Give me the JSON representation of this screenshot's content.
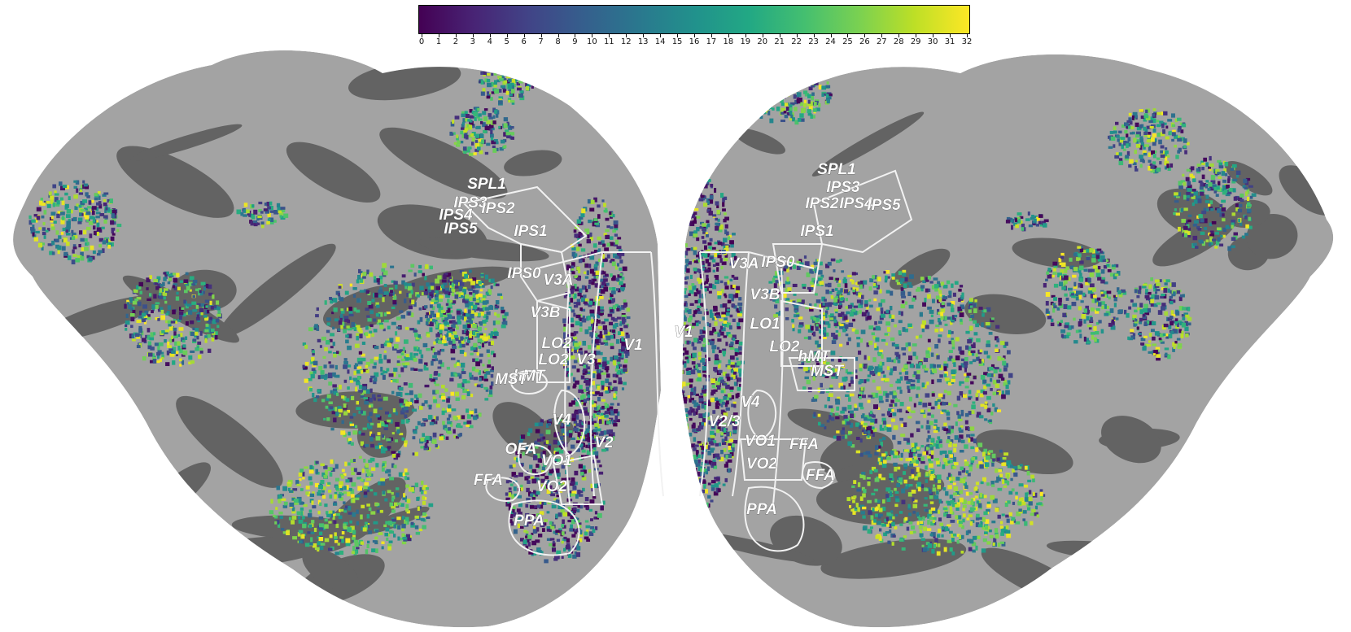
{
  "colorbar": {
    "min": 0,
    "max": 32,
    "colormap": "viridis",
    "ticks": [
      "0",
      "1",
      "2",
      "3",
      "4",
      "5",
      "6",
      "7",
      "8",
      "9",
      "10",
      "11",
      "12",
      "13",
      "14",
      "15",
      "16",
      "17",
      "18",
      "19",
      "20",
      "21",
      "22",
      "23",
      "24",
      "25",
      "26",
      "27",
      "28",
      "29",
      "30",
      "31",
      "32"
    ]
  },
  "colors": {
    "background": "#ffffff",
    "gyri": "#a3a3a3",
    "sulci": "#636363",
    "roi_outline": "#f2f2f2",
    "roi_text": "#ffffff"
  },
  "left_hemisphere": {
    "roi_labels": [
      "SPL1",
      "IPS3",
      "IPS4",
      "IPS2",
      "IPS5",
      "IPS1",
      "IPS0",
      "V3A",
      "V3B",
      "LO2",
      "LO2",
      "V3",
      "V1",
      "hMT",
      "MST",
      "V4",
      "OFA",
      "VO1",
      "V2",
      "FFA",
      "VO2",
      "PPA"
    ]
  },
  "right_hemisphere": {
    "roi_labels": [
      "SPL1",
      "IPS3",
      "IPS2",
      "IPS4",
      "IPS5",
      "IPS1",
      "V3A",
      "IPS0",
      "V3B",
      "V1",
      "LO1",
      "LO2",
      "hMT",
      "MST",
      "V4",
      "V2/3",
      "VO1",
      "FFA",
      "VO2",
      "FFA",
      "PPA"
    ]
  }
}
